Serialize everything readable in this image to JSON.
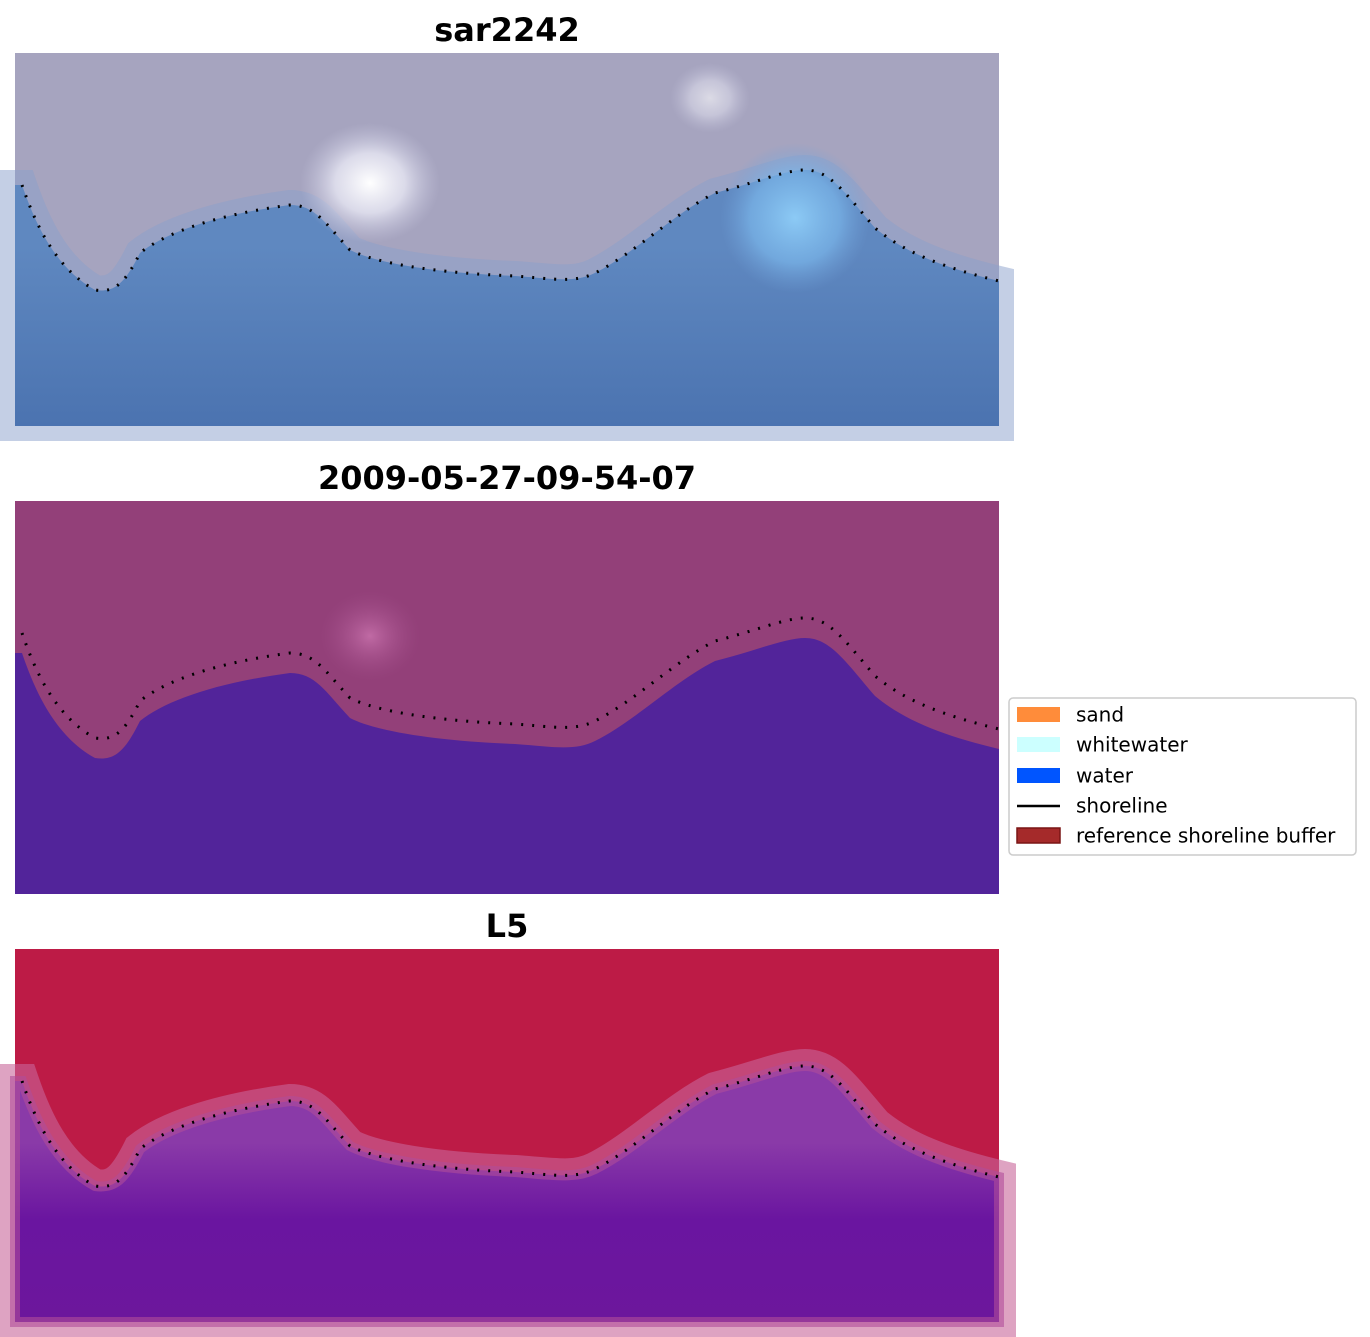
{
  "panels": [
    {
      "title": "sar2242"
    },
    {
      "title": "2009-05-27-09-54-07"
    },
    {
      "title": "L5"
    }
  ],
  "legend": {
    "items": [
      {
        "label": "sand"
      },
      {
        "label": "whitewater"
      },
      {
        "label": "water"
      },
      {
        "label": "shoreline"
      },
      {
        "label": "reference shoreline buffer"
      }
    ]
  }
}
